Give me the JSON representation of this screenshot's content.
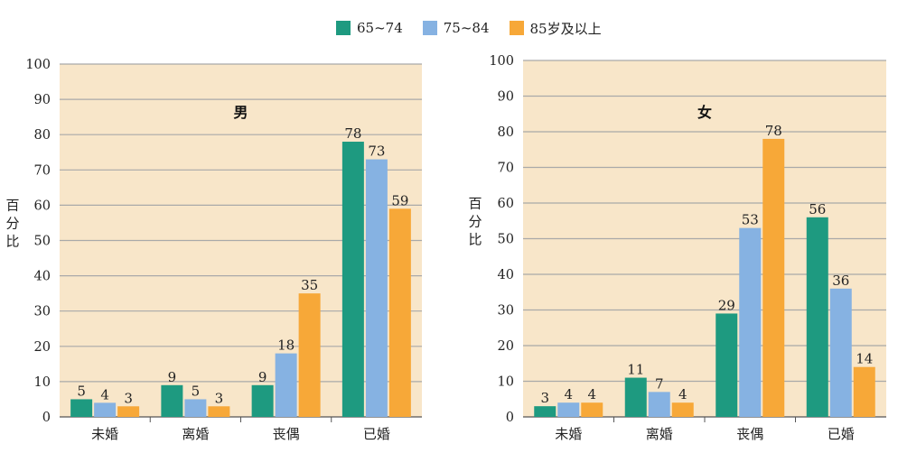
{
  "colors": {
    "plot_bg": "#f8e6c9",
    "grid": "#a9a9a9",
    "axis": "#555555",
    "series": [
      "#1e9a80",
      "#86b2e2",
      "#f7a838"
    ]
  },
  "legend": {
    "entries": [
      "65~74",
      "75~84",
      "85岁及以上"
    ]
  },
  "chart_data": [
    {
      "type": "bar",
      "title": "男",
      "ylabel": "百分比",
      "xlabel": "",
      "ylim": [
        0,
        100
      ],
      "yticks": [
        "0",
        "10",
        "20",
        "30",
        "40",
        "50",
        "60",
        "70",
        "80",
        "90",
        "100"
      ],
      "grid": true,
      "legend_position": "top-center",
      "categories": [
        "未婚",
        "离婚",
        "丧偶",
        "已婚"
      ],
      "series": [
        {
          "name": "65~74",
          "values": [
            5,
            9,
            9,
            78
          ]
        },
        {
          "name": "75~84",
          "values": [
            4,
            5,
            18,
            73
          ]
        },
        {
          "name": "85岁及以上",
          "values": [
            3,
            3,
            35,
            59
          ]
        }
      ]
    },
    {
      "type": "bar",
      "title": "女",
      "ylabel": "百分比",
      "xlabel": "",
      "ylim": [
        0,
        100
      ],
      "yticks": [
        "0",
        "10",
        "20",
        "30",
        "40",
        "50",
        "60",
        "70",
        "80",
        "90",
        "100"
      ],
      "grid": true,
      "legend_position": "top-center",
      "categories": [
        "未婚",
        "离婚",
        "丧偶",
        "已婚"
      ],
      "series": [
        {
          "name": "65~74",
          "values": [
            3,
            11,
            29,
            56
          ]
        },
        {
          "name": "75~84",
          "values": [
            4,
            7,
            53,
            36
          ]
        },
        {
          "name": "85岁及以上",
          "values": [
            4,
            4,
            78,
            14
          ]
        }
      ]
    }
  ]
}
